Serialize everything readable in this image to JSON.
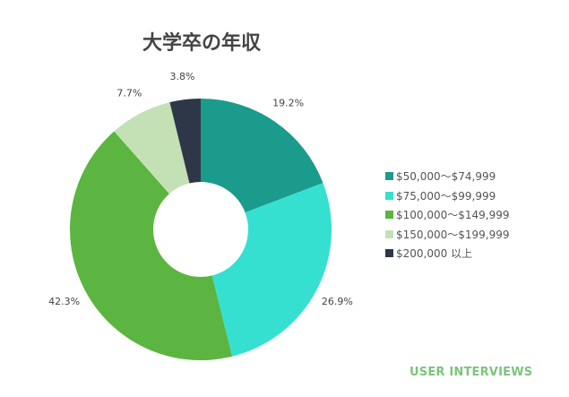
{
  "chart_data": {
    "type": "pie",
    "donut": true,
    "title": "大学卒の年収",
    "categories": [
      "$50,000～$74,999",
      "$75,000～$99,999",
      "$100,000～$149,999",
      "$150,000～$199,999",
      "$200,000 以上"
    ],
    "values": [
      19.2,
      26.9,
      42.3,
      7.7,
      3.8
    ],
    "labels": [
      "19.2%",
      "26.9%",
      "42.3%",
      "7.7%",
      "3.8%"
    ],
    "colors": [
      "#1a9b8c",
      "#36e0d0",
      "#5bb540",
      "#c3e1b5",
      "#2d3748"
    ],
    "legend_position": "right"
  },
  "brand": "USER INTERVIEWS"
}
